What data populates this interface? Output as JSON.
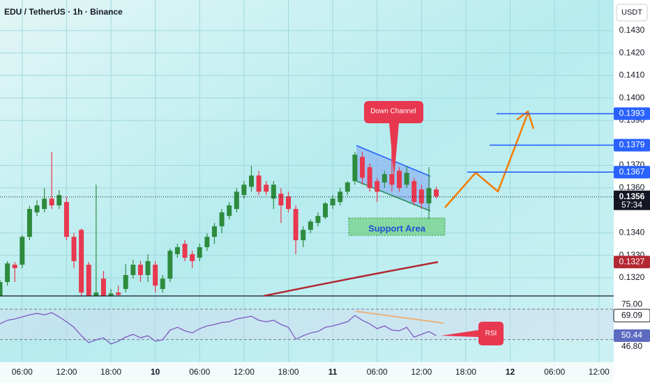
{
  "chart_data": [
    {
      "type": "candlestick",
      "title": "EDU / TetherUS · 1h · Binance",
      "y_axis_label": "USDT",
      "x": [
        -21,
        -20,
        -19,
        -18,
        -17,
        -16,
        -15,
        -14,
        -13,
        -12,
        -11,
        -10,
        -9,
        -8,
        -7,
        -6,
        -5,
        -4,
        -3,
        -2,
        -1,
        0,
        1,
        2,
        3,
        4,
        5,
        6,
        7,
        8,
        9,
        10,
        11,
        12,
        13,
        14,
        15,
        16,
        17,
        18,
        19,
        20,
        21,
        22,
        23,
        24,
        25,
        26,
        27,
        28,
        29,
        30,
        31,
        32,
        33,
        34,
        35,
        36,
        37,
        38
      ],
      "open": [
        0.13119,
        0.13181,
        0.13258,
        0.13258,
        0.13382,
        0.13491,
        0.13506,
        0.13552,
        0.13522,
        0.13537,
        0.13382,
        0.13413,
        0.13258,
        0.13119,
        0.13196,
        0.1312,
        0.13134,
        0.1315,
        0.13212,
        0.13258,
        0.13212,
        0.13258,
        0.1315,
        0.13196,
        0.13305,
        0.13351,
        0.13305,
        0.13289,
        0.13336,
        0.13382,
        0.13429,
        0.13475,
        0.13506,
        0.13568,
        0.13605,
        0.13655,
        0.13614,
        0.13552,
        0.13574,
        0.13562,
        0.13506,
        0.13367,
        0.13413,
        0.13444,
        0.13469,
        0.13522,
        0.13537,
        0.13583,
        0.1363,
        0.13738,
        0.13692,
        0.1363,
        0.13624,
        0.13661,
        0.13676,
        0.13614,
        0.1363,
        0.13593,
        0.13531,
        0.13593
      ],
      "high": [
        0.1319,
        0.13274,
        0.1327,
        0.1339,
        0.1352,
        0.13545,
        0.13599,
        0.1376,
        0.1359,
        0.1356,
        0.134,
        0.1342,
        0.1327,
        0.13614,
        0.1323,
        0.1315,
        0.13165,
        0.1326,
        0.1328,
        0.13274,
        0.13305,
        0.13274,
        0.13212,
        0.1333,
        0.13351,
        0.13367,
        0.1332,
        0.13351,
        0.13398,
        0.13444,
        0.13506,
        0.13537,
        0.13599,
        0.1363,
        0.13698,
        0.13676,
        0.1363,
        0.1363,
        0.13599,
        0.13583,
        0.13522,
        0.13429,
        0.1346,
        0.13491,
        0.13537,
        0.13568,
        0.13599,
        0.1363,
        0.1376,
        0.1376,
        0.1371,
        0.13645,
        0.13676,
        0.1378,
        0.13692,
        0.13698,
        0.13645,
        0.13614,
        0.13692,
        0.13605
      ],
      "low": [
        0.131,
        0.13165,
        0.13181,
        0.13243,
        0.13367,
        0.13475,
        0.13491,
        0.13506,
        0.13506,
        0.13367,
        0.13243,
        0.13119,
        0.131,
        0.131,
        0.131,
        0.1311,
        0.1311,
        0.13134,
        0.13196,
        0.13181,
        0.13181,
        0.13134,
        0.13134,
        0.13181,
        0.13289,
        0.13274,
        0.13243,
        0.13274,
        0.1332,
        0.13351,
        0.13398,
        0.1346,
        0.13491,
        0.13552,
        0.13583,
        0.13568,
        0.13568,
        0.13506,
        0.13444,
        0.13491,
        0.13305,
        0.13336,
        0.13398,
        0.13429,
        0.1346,
        0.13506,
        0.13522,
        0.13568,
        0.13614,
        0.13614,
        0.13583,
        0.13537,
        0.13599,
        0.13583,
        0.13583,
        0.13599,
        0.13522,
        0.13506,
        0.1346,
        0.13552
      ],
      "close": [
        0.13181,
        0.13264,
        0.13243,
        0.13382,
        0.13506,
        0.13522,
        0.13552,
        0.13522,
        0.13568,
        0.13382,
        0.13274,
        0.13134,
        0.13119,
        0.13134,
        0.13119,
        0.1313,
        0.13124,
        0.13212,
        0.13258,
        0.13212,
        0.13274,
        0.13165,
        0.13196,
        0.1332,
        0.13336,
        0.13289,
        0.13274,
        0.13336,
        0.13382,
        0.13429,
        0.13491,
        0.13522,
        0.13583,
        0.13614,
        0.13655,
        0.13583,
        0.13583,
        0.13614,
        0.13522,
        0.13506,
        0.13367,
        0.13413,
        0.1345,
        0.13475,
        0.13531,
        0.13552,
        0.13583,
        0.13624,
        0.13748,
        0.13645,
        0.13599,
        0.13583,
        0.13661,
        0.13614,
        0.13599,
        0.13667,
        0.13537,
        0.13531,
        0.13599,
        0.13562
      ],
      "up_color": "#2e8b3e",
      "down_color": "#e8384f",
      "xlim": [
        -21,
        62
      ],
      "xticks": [
        {
          "value": -18,
          "label": "06:00"
        },
        {
          "value": -12,
          "label": "12:00"
        },
        {
          "value": -6,
          "label": "18:00"
        },
        {
          "value": 0,
          "label": "10"
        },
        {
          "value": 6,
          "label": "06:00"
        },
        {
          "value": 12,
          "label": "12:00"
        },
        {
          "value": 18,
          "label": "18:00"
        },
        {
          "value": 24,
          "label": "11"
        },
        {
          "value": 30,
          "label": "06:00"
        },
        {
          "value": 36,
          "label": "12:00"
        },
        {
          "value": 42,
          "label": "18:00"
        },
        {
          "value": 48,
          "label": "12"
        },
        {
          "value": 54,
          "label": "06:00"
        },
        {
          "value": 60,
          "label": "12:00"
        }
      ],
      "ylim": [
        0.13119,
        0.14436
      ],
      "yticks": [
        {
          "value": 0.143,
          "label": "0.1430"
        },
        {
          "value": 0.142,
          "label": "0.1420"
        },
        {
          "value": 0.141,
          "label": "0.1410"
        },
        {
          "value": 0.14,
          "label": "0.1400"
        },
        {
          "value": 0.139,
          "label": "0.1390"
        },
        {
          "value": 0.137,
          "label": "0.1370"
        },
        {
          "value": 0.136,
          "label": "0.1360"
        },
        {
          "value": 0.134,
          "label": "0.1340"
        },
        {
          "value": 0.133,
          "label": "0.1330"
        },
        {
          "value": 0.132,
          "label": "0.1320"
        }
      ],
      "grid": true,
      "levels": [
        {
          "value": 0.1393,
          "color": "#2962ff"
        },
        {
          "value": 0.1379,
          "color": "#2962ff"
        },
        {
          "value": 0.1367,
          "color": "#2962ff"
        },
        {
          "value": 0.1356,
          "color": "#131722",
          "countdown": "57:34"
        },
        {
          "value": 0.1327,
          "color": "#b22833"
        }
      ],
      "annotations": {
        "down_channel": "Down Channel",
        "support_area": "Support Area"
      }
    },
    {
      "type": "line",
      "series": [
        {
          "name": "RSI",
          "color": "#7e57c2",
          "values": [
            61.4,
            64.7,
            66.0,
            67.9,
            69.8,
            71.1,
            69.8,
            71.8,
            67.9,
            63.4,
            58.2,
            50.4,
            44.0,
            46.6,
            48.5,
            42.7,
            45.3,
            49.1,
            51.7,
            48.5,
            50.4,
            45.3,
            46.6,
            55.6,
            58.2,
            55.0,
            53.0,
            56.9,
            59.5,
            60.8,
            62.7,
            63.4,
            66.0,
            67.2,
            68.5,
            64.7,
            63.4,
            64.7,
            60.8,
            58.2,
            47.2,
            50.4,
            53.0,
            54.3,
            58.2,
            59.5,
            61.4,
            63.4,
            69.2,
            64.7,
            61.4,
            56.9,
            59.5,
            55.6,
            55.0,
            58.2,
            49.1,
            51.7,
            54.3,
            50.4
          ]
        }
      ],
      "ylim": [
        25.9,
        87.3
      ],
      "yticks": [
        {
          "value": 75,
          "label": "75.00"
        },
        {
          "value": 46.8,
          "label": "46.80"
        }
      ],
      "badges": [
        {
          "value": 69.09,
          "color": "#ffffff"
        },
        {
          "value": 50.44,
          "color": "#5c6bc0"
        }
      ]
    }
  ]
}
